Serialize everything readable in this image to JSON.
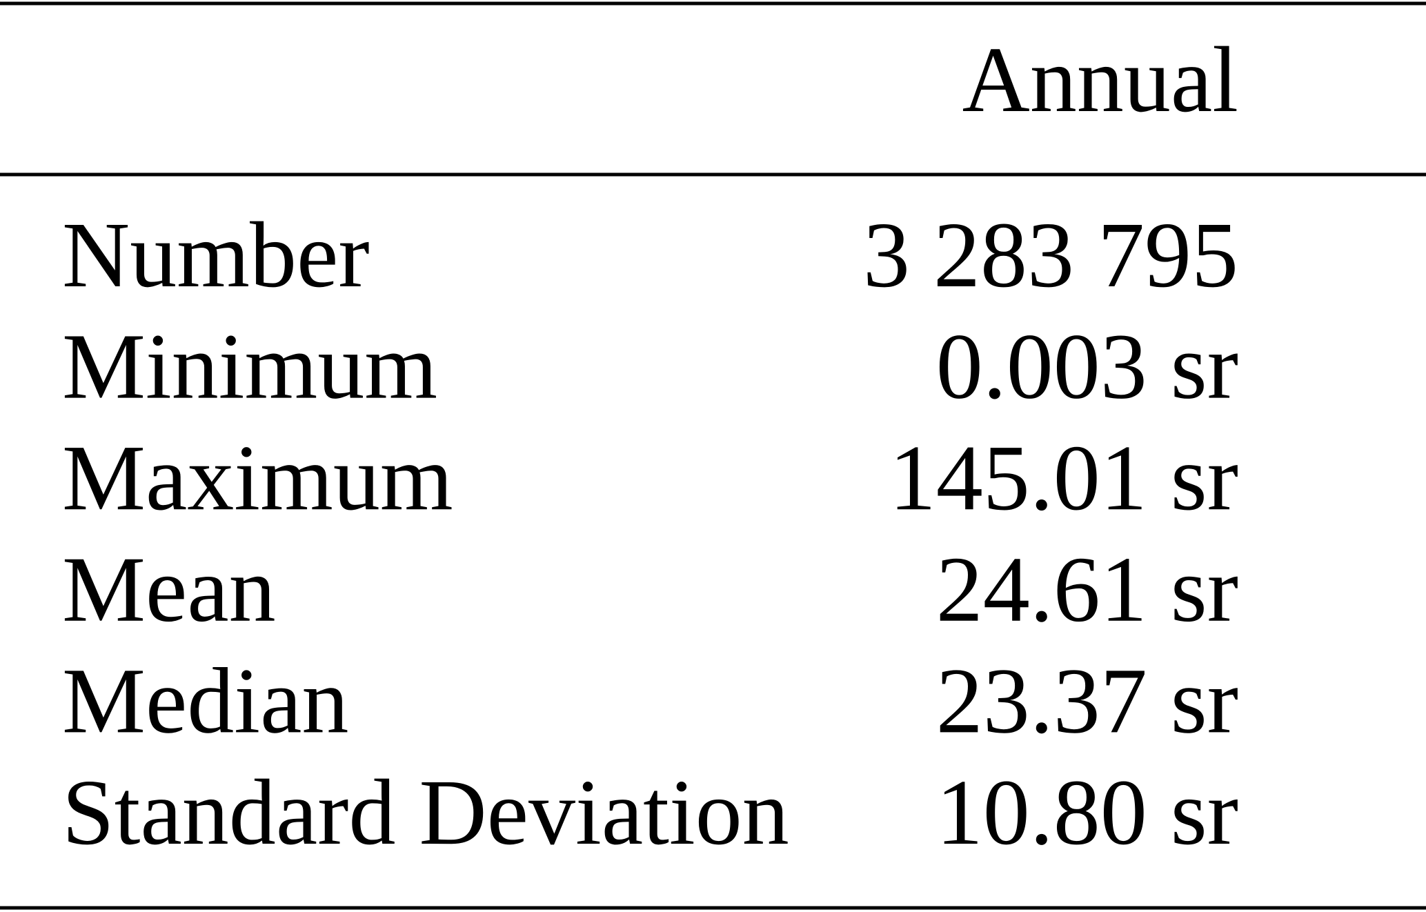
{
  "table": {
    "header": [
      "",
      "Annual"
    ],
    "rows": [
      [
        "Number",
        "3 283 795"
      ],
      [
        "Minimum",
        "0.003 sr"
      ],
      [
        "Maximum",
        "145.01 sr"
      ],
      [
        "Mean",
        "24.61 sr"
      ],
      [
        "Median",
        "23.37 sr"
      ],
      [
        "Standard Deviation",
        "10.80 sr"
      ]
    ]
  }
}
